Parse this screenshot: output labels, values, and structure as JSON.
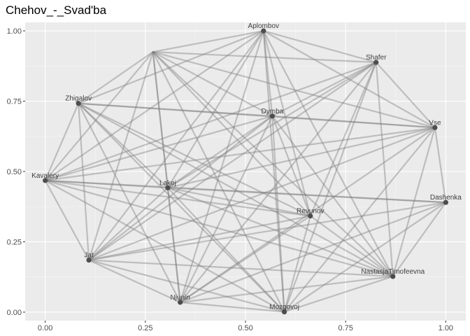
{
  "chart_data": {
    "type": "network",
    "title": "Chehov_-_Svad'ba",
    "xlabel": "",
    "ylabel": "",
    "xlim": [
      -0.05,
      1.05
    ],
    "ylim": [
      -0.03,
      1.03
    ],
    "x_ticks": [
      0.0,
      0.25,
      0.5,
      0.75,
      1.0
    ],
    "x_tick_labels": [
      "0.00",
      "0.25",
      "0.50",
      "0.75",
      "1.00"
    ],
    "y_ticks": [
      0.0,
      0.25,
      0.5,
      0.75,
      1.0
    ],
    "y_tick_labels": [
      "0.00",
      "0.25",
      "0.50",
      "0.75",
      "1.00"
    ],
    "grid": true,
    "nodes": [
      {
        "id": "Aplombov",
        "x": 0.545,
        "y": 1.0,
        "label": "Aplombov"
      },
      {
        "id": "Shafer",
        "x": 0.826,
        "y": 0.888,
        "label": "Shafer"
      },
      {
        "id": "Zhigalov",
        "x": 0.083,
        "y": 0.742,
        "label": "Zhigalov"
      },
      {
        "id": "Dymba",
        "x": 0.567,
        "y": 0.697,
        "label": "Dymba"
      },
      {
        "id": "Vse",
        "x": 0.973,
        "y": 0.656,
        "label": "Vse"
      },
      {
        "id": "Kavalery",
        "x": 0.0,
        "y": 0.468,
        "label": "Kavalery"
      },
      {
        "id": "Lakej",
        "x": 0.306,
        "y": 0.442,
        "label": "Lakej"
      },
      {
        "id": "Dashenka",
        "x": 1.0,
        "y": 0.39,
        "label": "Dashenka"
      },
      {
        "id": "Revunov",
        "x": 0.662,
        "y": 0.342,
        "label": "Revunov"
      },
      {
        "id": "Jat",
        "x": 0.109,
        "y": 0.185,
        "label": "Jat"
      },
      {
        "id": "NastasjaTimofeevna",
        "x": 0.868,
        "y": 0.127,
        "label": "NastasjaTimofeevna"
      },
      {
        "id": "Njunin",
        "x": 0.337,
        "y": 0.035,
        "label": "Njunin"
      },
      {
        "id": "Mozgovoj",
        "x": 0.597,
        "y": 0.001,
        "label": "Mozgovoj"
      },
      {
        "id": "",
        "x": 0.269,
        "y": 0.925,
        "label": ""
      }
    ],
    "edges": [
      [
        "",
        "Aplombov"
      ],
      [
        "",
        "Shafer"
      ],
      [
        "",
        "Zhigalov"
      ],
      [
        "",
        "Dymba"
      ],
      [
        "",
        "Vse"
      ],
      [
        "",
        "Kavalery"
      ],
      [
        "",
        "Lakej"
      ],
      [
        "",
        "Revunov"
      ],
      [
        "",
        "Jat"
      ],
      [
        "",
        "NastasjaTimofeevna"
      ],
      [
        "",
        "Njunin"
      ],
      [
        "",
        "Mozgovoj"
      ],
      [
        "Aplombov",
        "Shafer"
      ],
      [
        "Aplombov",
        "Zhigalov"
      ],
      [
        "Aplombov",
        "Dymba"
      ],
      [
        "Aplombov",
        "Vse"
      ],
      [
        "Aplombov",
        "Kavalery"
      ],
      [
        "Aplombov",
        "Lakej"
      ],
      [
        "Aplombov",
        "Revunov"
      ],
      [
        "Aplombov",
        "Jat"
      ],
      [
        "Aplombov",
        "NastasjaTimofeevna"
      ],
      [
        "Aplombov",
        "Njunin"
      ],
      [
        "Aplombov",
        "Mozgovoj"
      ],
      [
        "Shafer",
        "Dymba"
      ],
      [
        "Shafer",
        "Vse"
      ],
      [
        "Shafer",
        "Kavalery"
      ],
      [
        "Shafer",
        "Lakej"
      ],
      [
        "Shafer",
        "Revunov"
      ],
      [
        "Shafer",
        "Jat"
      ],
      [
        "Shafer",
        "NastasjaTimofeevna"
      ],
      [
        "Shafer",
        "Njunin"
      ],
      [
        "Shafer",
        "Mozgovoj"
      ],
      [
        "Zhigalov",
        "Dymba"
      ],
      [
        "Zhigalov",
        "Vse"
      ],
      [
        "Zhigalov",
        "Kavalery"
      ],
      [
        "Zhigalov",
        "Lakej"
      ],
      [
        "Zhigalov",
        "Revunov"
      ],
      [
        "Zhigalov",
        "Jat"
      ],
      [
        "Zhigalov",
        "NastasjaTimofeevna"
      ],
      [
        "Zhigalov",
        "Njunin"
      ],
      [
        "Zhigalov",
        "Mozgovoj"
      ],
      [
        "Dymba",
        "Vse"
      ],
      [
        "Dymba",
        "Kavalery"
      ],
      [
        "Dymba",
        "Lakej"
      ],
      [
        "Dymba",
        "Revunov"
      ],
      [
        "Dymba",
        "Jat"
      ],
      [
        "Dymba",
        "NastasjaTimofeevna"
      ],
      [
        "Dymba",
        "Njunin"
      ],
      [
        "Dymba",
        "Mozgovoj"
      ],
      [
        "Vse",
        "Kavalery"
      ],
      [
        "Vse",
        "Lakej"
      ],
      [
        "Vse",
        "Jat"
      ],
      [
        "Vse",
        "NastasjaTimofeevna"
      ],
      [
        "Vse",
        "Njunin"
      ],
      [
        "Vse",
        "Mozgovoj"
      ],
      [
        "Vse",
        "Dashenka"
      ],
      [
        "Kavalery",
        "Lakej"
      ],
      [
        "Kavalery",
        "Dashenka"
      ],
      [
        "Kavalery",
        "Revunov"
      ],
      [
        "Kavalery",
        "Jat"
      ],
      [
        "Kavalery",
        "NastasjaTimofeevna"
      ],
      [
        "Kavalery",
        "Mozgovoj"
      ],
      [
        "Lakej",
        "Dashenka"
      ],
      [
        "Lakej",
        "Revunov"
      ],
      [
        "Lakej",
        "Jat"
      ],
      [
        "Lakej",
        "NastasjaTimofeevna"
      ],
      [
        "Lakej",
        "Njunin"
      ],
      [
        "Lakej",
        "Mozgovoj"
      ],
      [
        "Dashenka",
        "Jat"
      ],
      [
        "Dashenka",
        "Njunin"
      ],
      [
        "Dashenka",
        "Mozgovoj"
      ],
      [
        "Dashenka",
        "NastasjaTimofeevna"
      ],
      [
        "Revunov",
        "Jat"
      ],
      [
        "Revunov",
        "NastasjaTimofeevna"
      ],
      [
        "Revunov",
        "Njunin"
      ],
      [
        "Revunov",
        "Mozgovoj"
      ],
      [
        "Jat",
        "NastasjaTimofeevna"
      ],
      [
        "Jat",
        "Njunin"
      ],
      [
        "Jat",
        "Mozgovoj"
      ],
      [
        "NastasjaTimofeevna",
        "Njunin"
      ],
      [
        "NastasjaTimofeevna",
        "Mozgovoj"
      ],
      [
        "Njunin",
        "Mozgovoj"
      ]
    ]
  }
}
